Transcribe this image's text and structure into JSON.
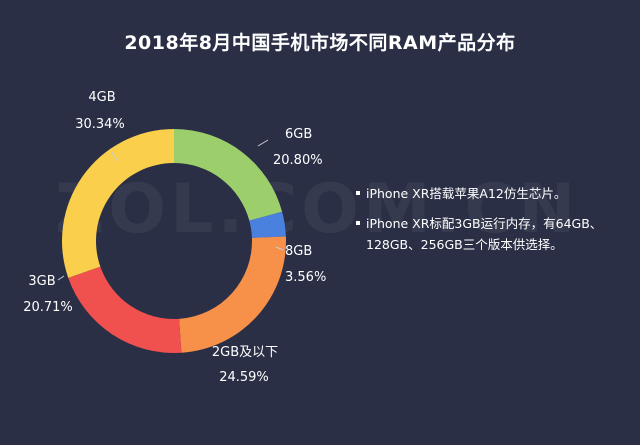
{
  "page": {
    "title": "2018年8月中国手机市场不同RAM产品分布",
    "watermark": "ZOL.COM.CN"
  },
  "chart_data": {
    "type": "pie",
    "title": "2018年8月中国手机市场不同RAM产品分布",
    "donut": true,
    "slices": [
      {
        "label": "6GB",
        "value": 20.8,
        "display": "20.80%",
        "color": "#9ccf6b"
      },
      {
        "label": "8GB",
        "value": 3.56,
        "display": "3.56%",
        "color": "#4a80de"
      },
      {
        "label": "2GB及以下",
        "value": 24.59,
        "display": "24.59%",
        "color": "#f7914a"
      },
      {
        "label": "3GB",
        "value": 20.71,
        "display": "20.71%",
        "color": "#f0514f"
      },
      {
        "label": "4GB",
        "value": 30.34,
        "display": "30.34%",
        "color": "#f9cf4b"
      }
    ]
  },
  "notes": [
    "iPhone XR搭载苹果A12仿生芯片。",
    "iPhone XR标配3GB运行内存，有64GB、128GB、256GB三个版本供选择。"
  ]
}
